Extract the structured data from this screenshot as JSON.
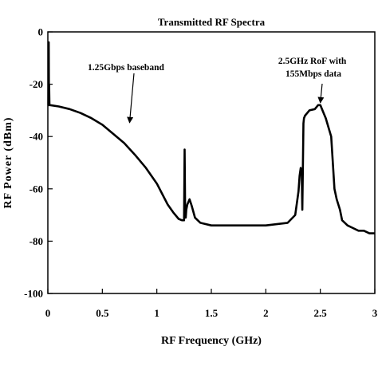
{
  "chart_data": {
    "type": "line",
    "title": "Transmitted RF Spectra",
    "xlabel": "RF Frequency (GHz)",
    "ylabel": "RF Power (dBm)",
    "xlim": [
      0,
      3
    ],
    "ylim": [
      -100,
      0
    ],
    "xticks": [
      0,
      0.5,
      1,
      1.5,
      2,
      2.5,
      3
    ],
    "xtick_labels": [
      "0",
      "0.5",
      "1",
      "1.5",
      "2",
      "2.5",
      "3"
    ],
    "yticks": [
      0,
      -20,
      -40,
      -60,
      -80,
      -100
    ],
    "ytick_labels": [
      "0",
      "-20",
      "-40",
      "-60",
      "-80",
      "-100"
    ],
    "grid": false,
    "legend": "none",
    "series": [
      {
        "color": "#000000",
        "x": [
          0.0,
          0.005,
          0.008,
          0.01,
          0.012,
          0.015,
          0.02,
          0.1,
          0.2,
          0.3,
          0.4,
          0.5,
          0.6,
          0.7,
          0.8,
          0.9,
          1.0,
          1.05,
          1.1,
          1.15,
          1.2,
          1.23,
          1.25,
          1.255,
          1.26,
          1.265,
          1.27,
          1.28,
          1.3,
          1.32,
          1.35,
          1.4,
          1.5,
          1.6,
          1.8,
          2.0,
          2.2,
          2.27,
          2.3,
          2.31,
          2.32,
          2.33,
          2.335,
          2.34,
          2.345,
          2.35,
          2.36,
          2.4,
          2.45,
          2.48,
          2.5,
          2.52,
          2.55,
          2.6,
          2.63,
          2.65,
          2.68,
          2.7,
          2.75,
          2.8,
          2.85,
          2.9,
          2.95,
          3.0
        ],
        "y": [
          -28,
          -28,
          -4,
          -28,
          -20,
          -28,
          -28,
          -28.5,
          -29.5,
          -31,
          -33,
          -35.5,
          -39,
          -42.5,
          -47,
          -52,
          -58,
          -62,
          -66,
          -69,
          -71.5,
          -72,
          -72,
          -45,
          -70,
          -71,
          -68,
          -66,
          -64,
          -66.5,
          -71,
          -73,
          -74,
          -74,
          -74,
          -74,
          -73,
          -70,
          -61,
          -55,
          -52,
          -55,
          -68,
          -52,
          -35,
          -33,
          -32,
          -30,
          -29.5,
          -28,
          -28,
          -30,
          -33,
          -40,
          -60,
          -64,
          -68,
          -72,
          -74,
          -75,
          -76,
          -76,
          -77,
          -77
        ]
      }
    ],
    "annotations": [
      {
        "text": "1.25Gbps baseband",
        "target": [
          0.75,
          -35
        ]
      },
      {
        "lines": [
          "2.5GHz RoF with",
          "155Mbps data"
        ],
        "target": [
          2.5,
          -28
        ]
      }
    ]
  }
}
